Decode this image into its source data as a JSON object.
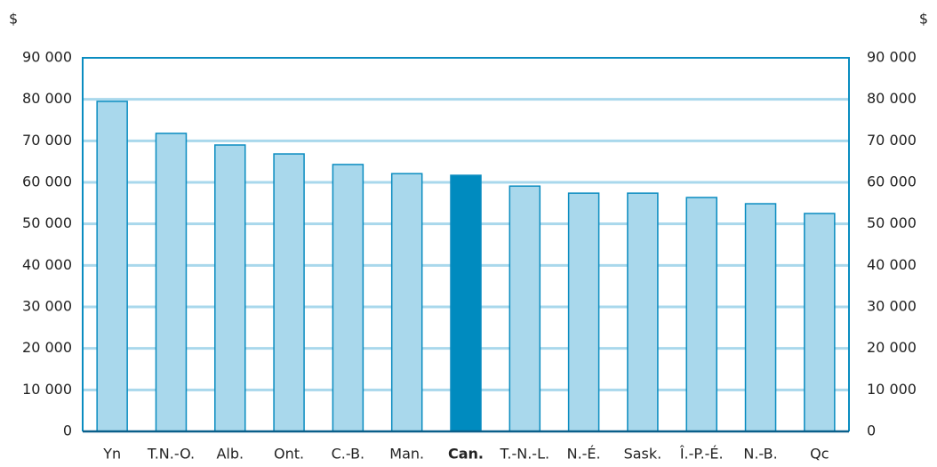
{
  "chart_data": {
    "type": "bar",
    "y_unit": "$",
    "categories": [
      "Yn",
      "T.N.-O.",
      "Alb.",
      "Ont.",
      "C.-B.",
      "Man.",
      "Can.",
      "T.-N.-L.",
      "N.-É.",
      "Sask.",
      "Î.-P.-É.",
      "N.-B.",
      "Qc"
    ],
    "values": [
      79500,
      71800,
      69000,
      66850,
      64300,
      62100,
      61700,
      59100,
      57400,
      57400,
      56350,
      54850,
      52500
    ],
    "color": "#a9d8ec",
    "highlight": "Can.",
    "highlight_color": "#008bbf",
    "ylim": [
      0,
      90000
    ],
    "yticks": [
      0,
      {
        "value": 10000,
        "label": "10 000"
      },
      {
        "value": 20000,
        "label": "20 000"
      },
      {
        "value": 30000,
        "label": "30 000"
      },
      {
        "value": 40000,
        "label": "40 000"
      },
      {
        "value": 50000,
        "label": "50 000"
      },
      {
        "value": 60000,
        "label": "60 000"
      },
      {
        "value": 70000,
        "label": "70 000"
      },
      {
        "value": 80000,
        "label": "80 000"
      },
      {
        "value": 90000,
        "label": "90 000"
      }
    ],
    "grid": true
  }
}
